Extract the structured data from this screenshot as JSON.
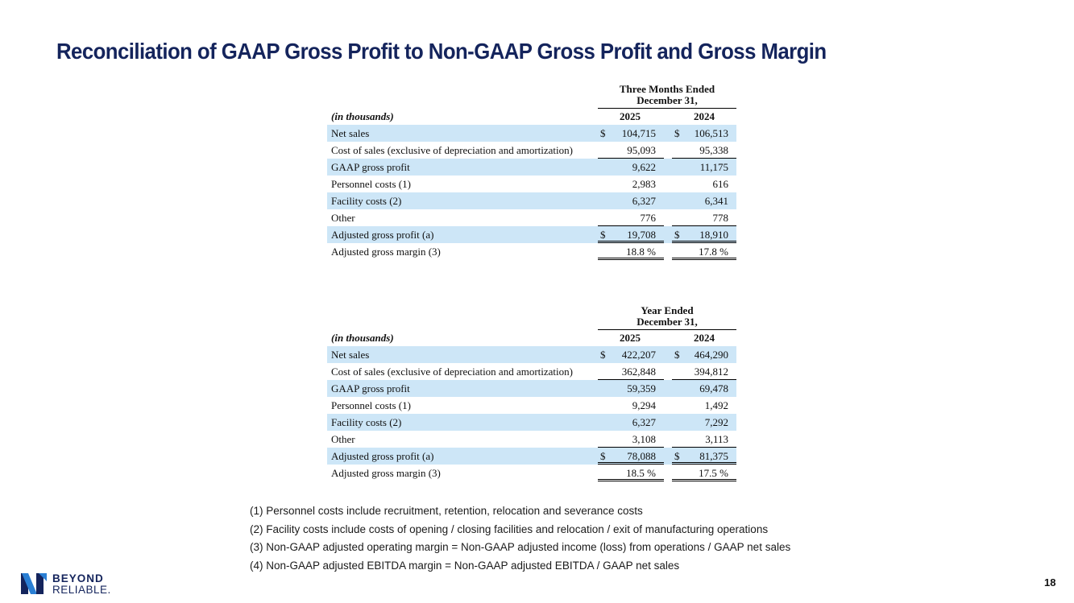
{
  "title": "Reconciliation of GAAP Gross Profit to Non-GAAP Gross Profit and Gross Margin",
  "tables": {
    "quarter": {
      "period_line1": "Three Months Ended",
      "period_line2": "December 31,",
      "unit_label": "(in thousands)",
      "years": [
        "2025",
        "2024"
      ],
      "rows": [
        {
          "label": "Net sales",
          "cur1": "$",
          "v1": "104,715",
          "cur2": "$",
          "v2": "106,513"
        },
        {
          "label": "Cost of sales (exclusive of depreciation and amortization)",
          "cur1": "",
          "v1": "95,093",
          "cur2": "",
          "v2": "95,338"
        },
        {
          "label": "GAAP gross profit",
          "cur1": "",
          "v1": "9,622",
          "cur2": "",
          "v2": "11,175"
        },
        {
          "label": "Personnel costs (1)",
          "cur1": "",
          "v1": "2,983",
          "cur2": "",
          "v2": "616"
        },
        {
          "label": "Facility costs (2)",
          "cur1": "",
          "v1": "6,327",
          "cur2": "",
          "v2": "6,341"
        },
        {
          "label": "Other",
          "cur1": "",
          "v1": "776",
          "cur2": "",
          "v2": "778"
        },
        {
          "label": "Adjusted gross profit (a)",
          "cur1": "$",
          "v1": "19,708",
          "cur2": "$",
          "v2": "18,910"
        },
        {
          "label": "Adjusted gross margin (3)",
          "cur1": "",
          "v1": "18.8 %",
          "cur2": "",
          "v2": "17.8 %"
        }
      ]
    },
    "year": {
      "period_line1": "Year Ended",
      "period_line2": "December 31,",
      "unit_label": "(in thousands)",
      "years": [
        "2025",
        "2024"
      ],
      "rows": [
        {
          "label": "Net sales",
          "cur1": "$",
          "v1": "422,207",
          "cur2": "$",
          "v2": "464,290"
        },
        {
          "label": "Cost of sales (exclusive of depreciation and amortization)",
          "cur1": "",
          "v1": "362,848",
          "cur2": "",
          "v2": "394,812"
        },
        {
          "label": "GAAP gross profit",
          "cur1": "",
          "v1": "59,359",
          "cur2": "",
          "v2": "69,478"
        },
        {
          "label": "Personnel costs (1)",
          "cur1": "",
          "v1": "9,294",
          "cur2": "",
          "v2": "1,492"
        },
        {
          "label": "Facility costs (2)",
          "cur1": "",
          "v1": "6,327",
          "cur2": "",
          "v2": "7,292"
        },
        {
          "label": "Other",
          "cur1": "",
          "v1": "3,108",
          "cur2": "",
          "v2": "3,113"
        },
        {
          "label": "Adjusted gross profit (a)",
          "cur1": "$",
          "v1": "78,088",
          "cur2": "$",
          "v2": "81,375"
        },
        {
          "label": "Adjusted gross margin (3)",
          "cur1": "",
          "v1": "18.5 %",
          "cur2": "",
          "v2": "17.5 %"
        }
      ]
    }
  },
  "footnotes": [
    "(1) Personnel costs include recruitment, retention, relocation and severance costs",
    "(2) Facility costs include costs of opening / closing facilities and relocation / exit of manufacturing operations",
    "(3) Non-GAAP adjusted operating margin = Non-GAAP adjusted income (loss) from operations / GAAP net sales",
    "(4) Non-GAAP adjusted EBITDA margin = Non-GAAP adjusted EBITDA / GAAP net sales"
  ],
  "logo": {
    "line1": "BEYOND",
    "line2": "RELIABLE."
  },
  "page_number": "18",
  "colors": {
    "title": "#14245c",
    "row_shade": "#cde6f7",
    "logo_accent": "#2a7fd4"
  }
}
